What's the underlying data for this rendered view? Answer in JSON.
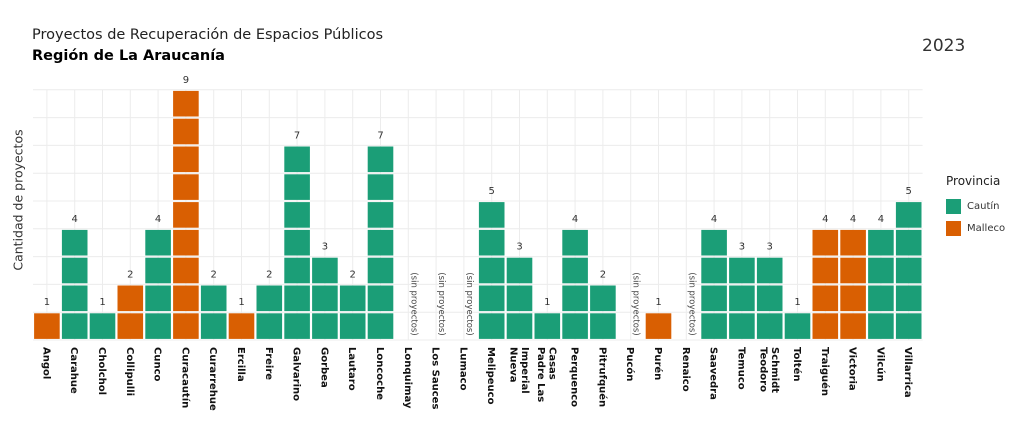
{
  "header": {
    "title": "Proyectos de Recuperación de Espacios Públicos",
    "subtitle": "Región de La Araucanía",
    "year": "2023"
  },
  "legend": {
    "title": "Provincia",
    "items": [
      {
        "label": "Cautín",
        "color": "#1b9e77"
      },
      {
        "label": "Malleco",
        "color": "#d95f02"
      }
    ]
  },
  "chart_data": {
    "type": "bar",
    "ylabel": "Cantidad de proyectos",
    "ylim": [
      0,
      9
    ],
    "empty_label": "(sin proyectos)",
    "grid": true,
    "legend_position": "right",
    "categories": [
      "Angol",
      "Carahue",
      "Cholchol",
      "Collipulli",
      "Cunco",
      "Curacautín",
      "Curarrehue",
      "Ercilla",
      "Freire",
      "Galvarino",
      "Gorbea",
      "Lautaro",
      "Loncoche",
      "Lonquimay",
      "Los Sauces",
      "Lumaco",
      "Melipeuco",
      "Nueva Imperial",
      "Padre Las Casas",
      "Perquenco",
      "Pitrufquén",
      "Pucón",
      "Purén",
      "Renaico",
      "Saavedra",
      "Temuco",
      "Teodoro Schmidt",
      "Toltén",
      "Traiguén",
      "Victoria",
      "Vilcún",
      "Villarrica"
    ],
    "province": [
      "Malleco",
      "Cautín",
      "Cautín",
      "Malleco",
      "Cautín",
      "Malleco",
      "Cautín",
      "Malleco",
      "Cautín",
      "Cautín",
      "Cautín",
      "Cautín",
      "Cautín",
      "Malleco",
      "Malleco",
      "Malleco",
      "Cautín",
      "Cautín",
      "Cautín",
      "Cautín",
      "Cautín",
      "Cautín",
      "Malleco",
      "Malleco",
      "Cautín",
      "Cautín",
      "Cautín",
      "Cautín",
      "Malleco",
      "Malleco",
      "Cautín",
      "Cautín"
    ],
    "values": [
      1,
      4,
      1,
      2,
      4,
      9,
      2,
      1,
      2,
      7,
      3,
      2,
      7,
      0,
      0,
      0,
      5,
      3,
      1,
      4,
      2,
      0,
      1,
      0,
      4,
      3,
      3,
      1,
      4,
      4,
      4,
      5
    ]
  }
}
